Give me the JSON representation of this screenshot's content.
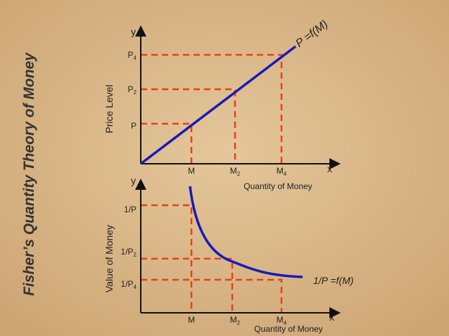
{
  "title": "Fisher’s Quantity Theory of Money",
  "top_chart": {
    "y_axis_label": "y",
    "x_axis_label": "x",
    "y_title": "Price Level",
    "x_title": "Quantity of Money",
    "curve_label": "P =f(M)",
    "y_ticks": [
      {
        "base": "P",
        "sub": "4"
      },
      {
        "base": "P",
        "sub": "2"
      },
      {
        "base": "P"
      }
    ],
    "x_ticks": [
      {
        "base": "M"
      },
      {
        "base": "M",
        "sub": "2"
      },
      {
        "base": "M",
        "sub": "4"
      }
    ]
  },
  "bottom_chart": {
    "y_axis_label": "y",
    "x_axis_label": "x",
    "y_title": "Value of Money",
    "x_title": "Quantity of Money",
    "curve_label": "1/P =f(M)",
    "y_ticks": [
      {
        "base": "1/P"
      },
      {
        "base": "1/P",
        "sub": "2"
      },
      {
        "base": "1/P",
        "sub": "4"
      }
    ],
    "x_ticks": [
      {
        "base": "M"
      },
      {
        "base": "M",
        "sub": "2"
      },
      {
        "base": "M",
        "sub": "4"
      }
    ]
  }
}
